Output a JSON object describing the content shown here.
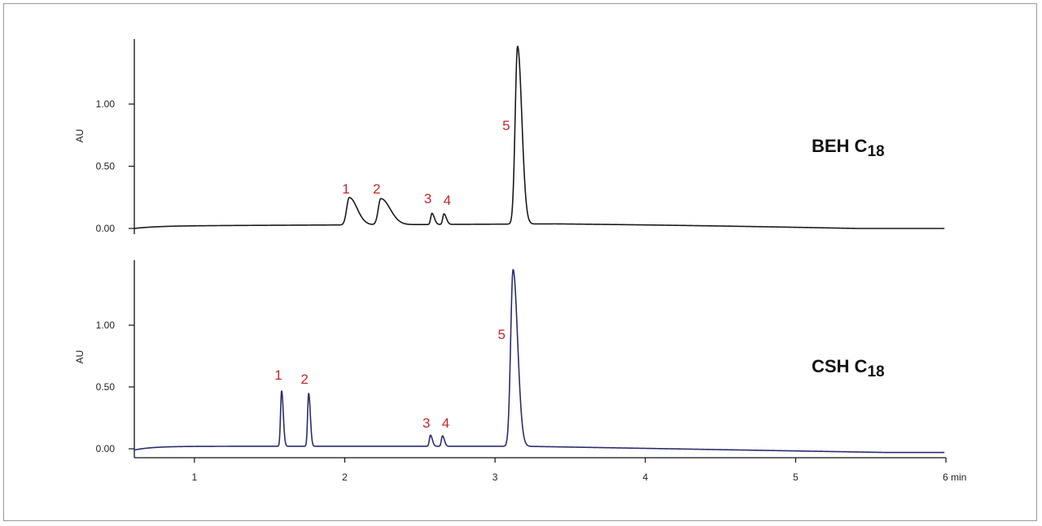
{
  "chart_data": [
    {
      "type": "line",
      "title": "BEH C18",
      "title_main": "BEH C",
      "title_sub": "18",
      "ylabel": "AU",
      "xlim": [
        0.6,
        6.0
      ],
      "ylim": [
        -0.02,
        1.5
      ],
      "y_ticks": [
        {
          "value": 0.0,
          "label": "0.00"
        },
        {
          "value": 0.5,
          "label": "0.50"
        },
        {
          "value": 1.0,
          "label": "1.00"
        }
      ],
      "line_color": "#1a1a1a",
      "baseline": {
        "start": 0.0,
        "rise_to": 0.02,
        "rise_width": 0.15,
        "drift_per_min": 0.006,
        "end": 0.0
      },
      "peaks": [
        {
          "label": "1",
          "rt": 2.03,
          "height": 0.22,
          "sigma": 0.017,
          "tail": 0.035
        },
        {
          "label": "2",
          "rt": 2.24,
          "height": 0.21,
          "sigma": 0.017,
          "tail": 0.045
        },
        {
          "label": "3",
          "rt": 2.58,
          "height": 0.09,
          "sigma": 0.008,
          "tail": 0.008
        },
        {
          "label": "4",
          "rt": 2.66,
          "height": 0.085,
          "sigma": 0.008,
          "tail": 0.008
        },
        {
          "label": "5",
          "rt": 3.15,
          "height": 1.43,
          "sigma": 0.016,
          "tail": 0.012
        }
      ],
      "peak_label_color": "#c0282d"
    },
    {
      "type": "line",
      "title": "CSH C18",
      "title_main": "CSH C",
      "title_sub": "18",
      "ylabel": "AU",
      "xlim": [
        0.6,
        6.0
      ],
      "ylim": [
        -0.04,
        1.5
      ],
      "y_ticks": [
        {
          "value": 0.0,
          "label": "0.00"
        },
        {
          "value": 0.5,
          "label": "0.50"
        },
        {
          "value": 1.0,
          "label": "1.00"
        }
      ],
      "x_ticks": [
        {
          "value": 1,
          "label": "1"
        },
        {
          "value": 2,
          "label": "2"
        },
        {
          "value": 3,
          "label": "3"
        },
        {
          "value": 4,
          "label": "4"
        },
        {
          "value": 5,
          "label": "5"
        },
        {
          "value": 6,
          "label": "6 min"
        }
      ],
      "line_color": "#2b2d6e",
      "baseline": {
        "start": -0.01,
        "rise_to": 0.02,
        "rise_width": 0.12,
        "drift_per_min": 0.0,
        "end": -0.03
      },
      "peaks": [
        {
          "label": "1",
          "rt": 1.58,
          "height": 0.45,
          "sigma": 0.007,
          "tail": 0.004
        },
        {
          "label": "2",
          "rt": 1.76,
          "height": 0.43,
          "sigma": 0.007,
          "tail": 0.004
        },
        {
          "label": "3",
          "rt": 2.57,
          "height": 0.09,
          "sigma": 0.007,
          "tail": 0.006
        },
        {
          "label": "4",
          "rt": 2.65,
          "height": 0.085,
          "sigma": 0.007,
          "tail": 0.006
        },
        {
          "label": "5",
          "rt": 3.12,
          "height": 1.43,
          "sigma": 0.016,
          "tail": 0.014
        }
      ],
      "peak_label_color": "#c0282d"
    }
  ]
}
